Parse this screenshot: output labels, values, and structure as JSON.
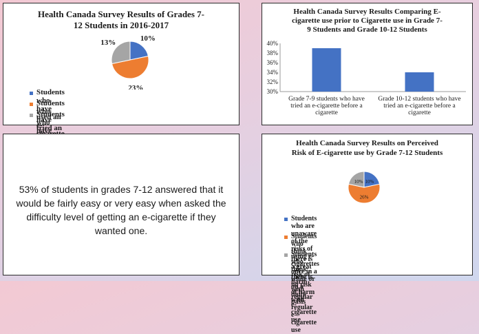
{
  "chart_data": [
    {
      "type": "pie",
      "title": "Health Canada Survey Results of Grades 7-\n12 Students in 2016-2017",
      "categories": [
        "Students who have used an e-cigarette",
        "Students who have tried an e-cigarette",
        "Students who have tried both an e-cigarette and cigarette"
      ],
      "values": [
        10,
        23,
        13
      ],
      "labels": [
        "10%",
        "23%",
        "13%"
      ],
      "colors": [
        "#4472c4",
        "#ed7d31",
        "#a5a5a5"
      ],
      "legend_position": "bottom"
    },
    {
      "type": "bar",
      "title": "Health Canada Survey Results Comparing E-\ncigarette use prior to Cigarette use in Grade 7-\n9 Students and Grade 10-12 Students",
      "categories": [
        "Grade 7-9 students who have\ntried an e-cigarette before a\ncigarette",
        "Grade 10-12 students who have\ntried an e-cigarette before a\ncigarette"
      ],
      "values": [
        39,
        34
      ],
      "ylim": [
        30,
        40
      ],
      "yticks": [
        "30%",
        "32%",
        "34%",
        "36%",
        "38%",
        "40%"
      ],
      "color": "#4472c4",
      "grid": false
    },
    {
      "type": "pie",
      "title": "Health Canada Survey Results on Perceived\nRisk of E-cigarette use by Grade 7-12 Students",
      "categories": [
        "Students who are unaware of the risks of using e-\ncigarettes once in a while or on a daily basis",
        "Students who think there is a great risk of harm\nwith regular e-cigarette use",
        "Students who think there is no risk of harm with\nregular e-cigarette use"
      ],
      "values": [
        10,
        26,
        10
      ],
      "labels": [
        "10%",
        "26%",
        "10%"
      ],
      "colors": [
        "#4472c4",
        "#ed7d31",
        "#a5a5a5"
      ],
      "legend_position": "bottom"
    }
  ],
  "text_panel": {
    "body": "53% of students in grades 7-12  answered that  it would be fairly easy or very easy when asked the difficulty level of getting an e-cigarette if they wanted one."
  }
}
